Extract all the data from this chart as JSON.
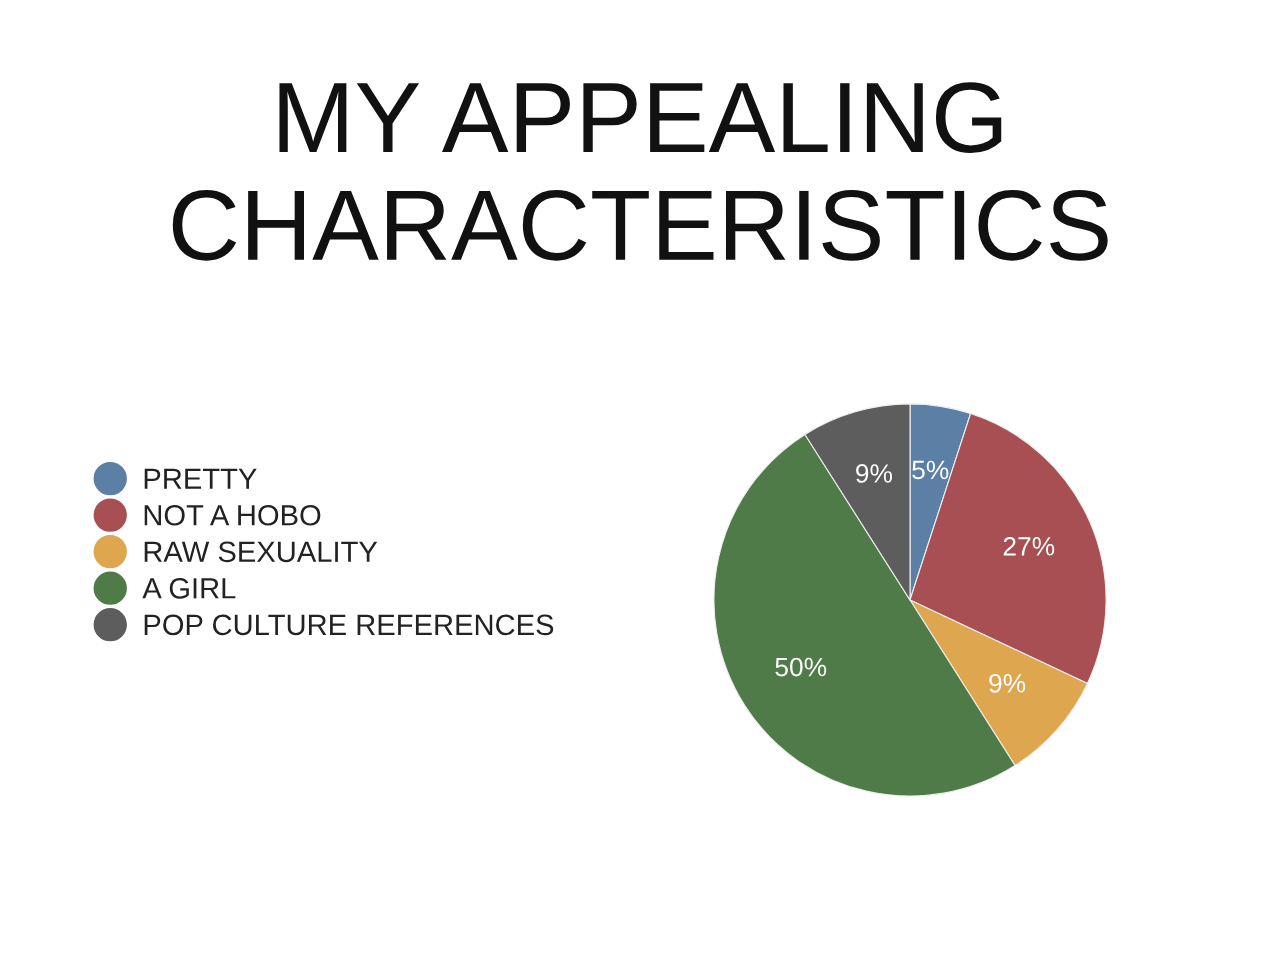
{
  "chart_data": {
    "type": "pie",
    "title": "MY APPEALING\nCHARACTERISTICS",
    "categories": [
      "PRETTY",
      "NOT A HOBO",
      "RAW SEXUALITY",
      "A GIRL",
      "POP CULTURE REFERENCES"
    ],
    "values": [
      5,
      27,
      9,
      50,
      9
    ],
    "colors": [
      "#5b7fa5",
      "#a84f53",
      "#dfa650",
      "#4f7b48",
      "#5d5d5d"
    ],
    "value_labels": [
      "5%",
      "27%",
      "9%",
      "50%",
      "9%"
    ],
    "legend": "left"
  }
}
